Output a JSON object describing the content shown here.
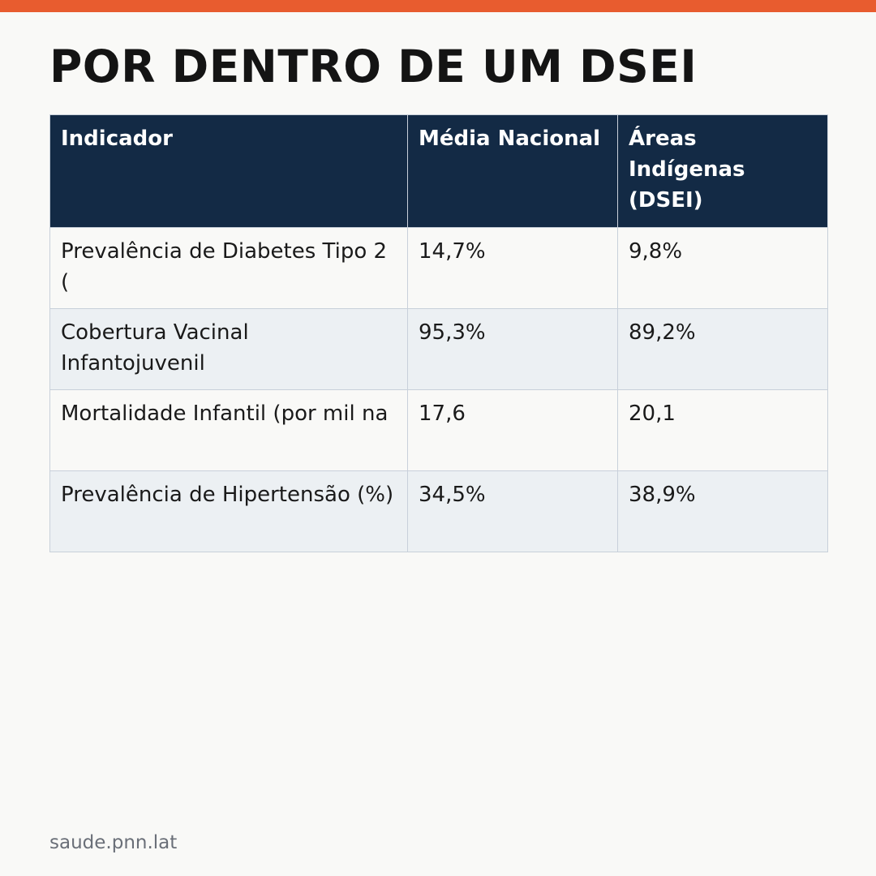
{
  "header": {
    "title": "POR DENTRO DE UM DSEI"
  },
  "colors": {
    "accent_bar": "#e85c2f",
    "table_header_bg": "#132a45",
    "row_alt_bg": "#ecf0f3",
    "page_bg": "#f9f9f7"
  },
  "table": {
    "columns": [
      "Indicador",
      "Média Nacional",
      "Áreas Indígenas (DSEI)"
    ],
    "rows": [
      [
        "Prevalência de Diabetes Tipo 2 (",
        "14,7%",
        "9,8%"
      ],
      [
        "Cobertura Vacinal Infantojuvenil",
        "95,3%",
        "89,2%"
      ],
      [
        "Mortalidade Infantil (por mil na",
        "17,6",
        "20,1"
      ],
      [
        "Prevalência de Hipertensão (%)",
        "34,5%",
        "38,9%"
      ]
    ]
  },
  "footer": {
    "source": "saude.pnn.lat"
  }
}
